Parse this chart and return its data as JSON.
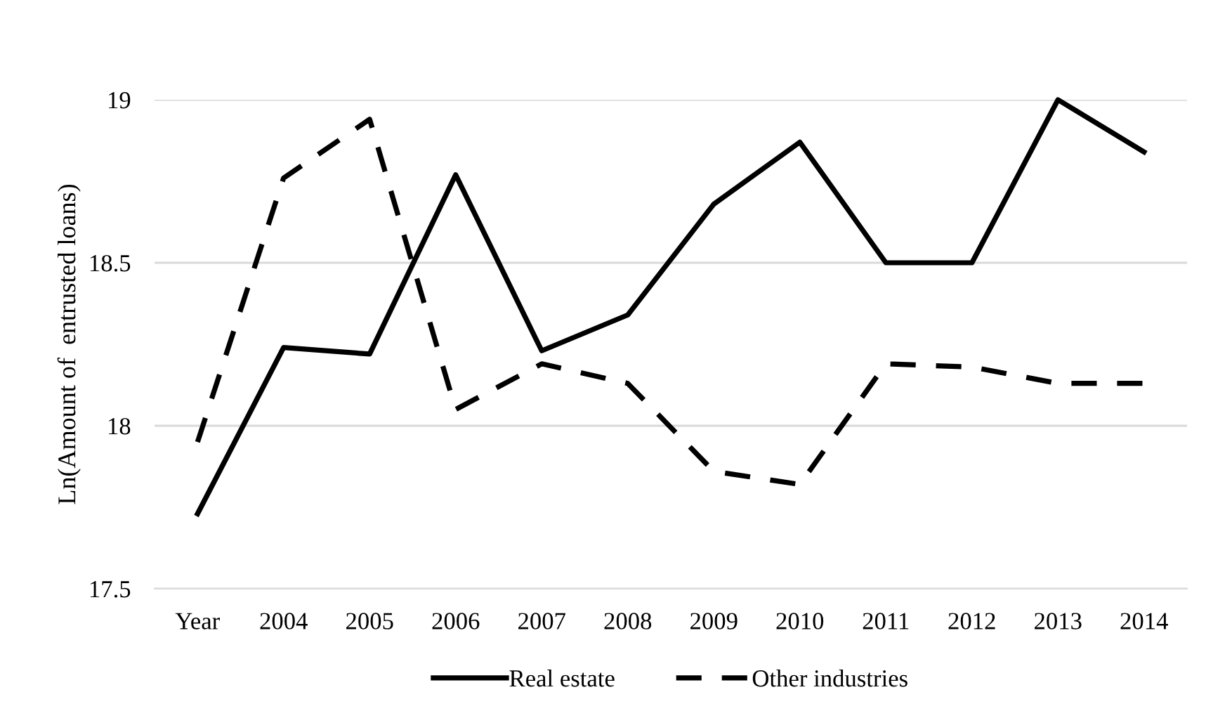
{
  "chart_data": {
    "type": "line",
    "ylabel": "Ln(Amount of  entrusted loans)",
    "categories": [
      "Year",
      "2004",
      "2005",
      "2006",
      "2007",
      "2008",
      "2009",
      "2010",
      "2011",
      "2012",
      "2013",
      "2014"
    ],
    "series": [
      {
        "name": "Real estate",
        "color": "#000000",
        "line_style": "solid",
        "values": [
          17.73,
          18.24,
          18.22,
          18.77,
          18.23,
          18.34,
          18.68,
          18.87,
          18.5,
          18.5,
          19.0,
          18.84
        ]
      },
      {
        "name": "Other industries",
        "color": "#000000",
        "line_style": "dashed",
        "values": [
          17.95,
          18.76,
          18.94,
          18.05,
          18.19,
          18.13,
          17.86,
          17.82,
          18.19,
          18.18,
          18.13,
          18.13
        ]
      }
    ],
    "ylim": [
      17.5,
      19
    ],
    "yticks": [
      17.5,
      18,
      18.5,
      19
    ],
    "grid": "y",
    "legend": "bottom",
    "marker": "none"
  }
}
